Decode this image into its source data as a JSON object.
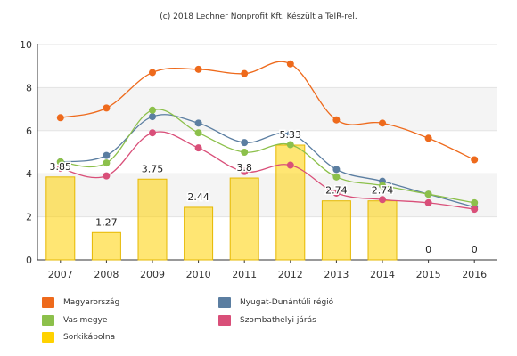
{
  "credit": "(c) 2018 Lechner Nonprofit Kft. Készült a TeIR-rel.",
  "chart_data": {
    "type": "bar",
    "categories": [
      "2007",
      "2008",
      "2009",
      "2010",
      "2011",
      "2012",
      "2013",
      "2014",
      "2015",
      "2016"
    ],
    "ylim": [
      0,
      10
    ],
    "yticks": [
      0,
      2,
      4,
      6,
      8,
      10
    ],
    "grid": true,
    "legend_position": "bottom",
    "bar_series": {
      "name": "Sorkikápolna",
      "color": "#ffd200",
      "values": [
        3.85,
        1.27,
        3.75,
        2.44,
        3.8,
        5.33,
        2.74,
        2.74,
        0,
        0
      ],
      "labels": [
        "3.85",
        "1.27",
        "3.75",
        "2.44",
        "3.8",
        "5.33",
        "2.74",
        "2.74",
        "0",
        "0"
      ]
    },
    "line_series": [
      {
        "name": "Magyarország",
        "color": "#ee6a1c",
        "values": [
          6.6,
          7.05,
          8.7,
          8.85,
          8.65,
          9.1,
          6.5,
          6.35,
          5.65,
          4.65
        ]
      },
      {
        "name": "Nyugat-Dunántúli régió",
        "color": "#5b7ea1",
        "values": [
          4.55,
          4.85,
          6.65,
          6.35,
          5.45,
          5.85,
          4.2,
          3.65,
          3.05,
          2.45
        ]
      },
      {
        "name": "Vas megye",
        "color": "#8cc04b",
        "values": [
          4.55,
          4.5,
          6.95,
          5.9,
          5.0,
          5.35,
          3.85,
          3.45,
          3.05,
          2.65
        ]
      },
      {
        "name": "Szombathelyi járás",
        "color": "#d94f79",
        "values": [
          4.25,
          3.9,
          5.9,
          5.2,
          4.1,
          4.4,
          3.1,
          2.8,
          2.65,
          2.35
        ]
      }
    ]
  },
  "legend": [
    {
      "label": "Magyarország",
      "color": "#ee6a1c"
    },
    {
      "label": "Nyugat-Dunántúli régió",
      "color": "#5b7ea1"
    },
    {
      "label": "Vas megye",
      "color": "#8cc04b"
    },
    {
      "label": "Szombathelyi járás",
      "color": "#d94f79"
    },
    {
      "label": "Sorkikápolna",
      "color": "#ffd200"
    }
  ]
}
